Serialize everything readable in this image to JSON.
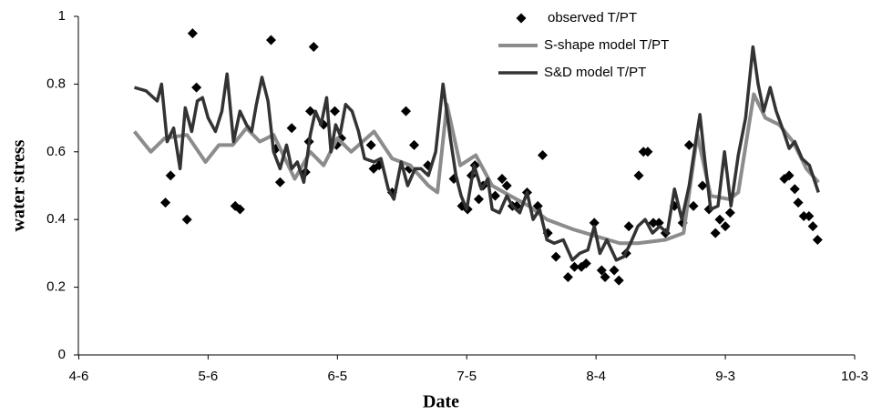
{
  "chart_data": {
    "type": "line",
    "x_label": "Date",
    "y_label": "water stress",
    "xlim": [
      -0.1,
      180
    ],
    "xticks": [
      {
        "value": 0,
        "label": "4-6"
      },
      {
        "value": 30,
        "label": "5-6"
      },
      {
        "value": 60,
        "label": "6-5"
      },
      {
        "value": 90,
        "label": "7-5"
      },
      {
        "value": 120,
        "label": "8-4"
      },
      {
        "value": 150,
        "label": "9-3"
      },
      {
        "value": 180,
        "label": "10-3"
      }
    ],
    "ylim": [
      0,
      1
    ],
    "yticks": [
      0,
      0.2,
      0.4,
      0.6,
      0.8,
      1
    ],
    "grid": false,
    "legend": "top-right",
    "series": [
      {
        "name": "observed T/PT",
        "color": "#000000",
        "marker": "diamond",
        "x": [
          26.4,
          27.3,
          20.1,
          21.3,
          25.1,
          36.3,
          37.4,
          44.6,
          54.5,
          45.8,
          46.7,
          49.4,
          52.6,
          53.4,
          53.7,
          56.8,
          59.4,
          59.8,
          60.9,
          67.8,
          68.4,
          69.7,
          72.7,
          75.9,
          76.7,
          77.8,
          81.0,
          87.0,
          88.9,
          90.2,
          91.1,
          91.9,
          92.8,
          93.8,
          96.6,
          98.2,
          99.3,
          100.6,
          101.6,
          104.0,
          106.5,
          107.6,
          108.8,
          110.7,
          113.5,
          115.0,
          116.6,
          117.7,
          119.6,
          121.3,
          122.1,
          124.2,
          125.3,
          127.0,
          127.6,
          129.9,
          131.0,
          132.0,
          133.3,
          134.6,
          136.1,
          138.2,
          140.1,
          141.6,
          142.6,
          144.7,
          146.2,
          147.7,
          148.7,
          150.0,
          151.1,
          163.7,
          164.8,
          166.1,
          166.9,
          168.2,
          169.4,
          170.3,
          171.4
        ],
        "values": [
          0.95,
          0.79,
          0.45,
          0.53,
          0.4,
          0.44,
          0.43,
          0.93,
          0.91,
          0.61,
          0.51,
          0.67,
          0.54,
          0.63,
          0.72,
          0.68,
          0.72,
          0.62,
          0.64,
          0.62,
          0.55,
          0.56,
          0.48,
          0.72,
          0.55,
          0.62,
          0.56,
          0.52,
          0.44,
          0.43,
          0.53,
          0.56,
          0.46,
          0.5,
          0.47,
          0.52,
          0.5,
          0.44,
          0.44,
          0.48,
          0.44,
          0.59,
          0.36,
          0.29,
          0.23,
          0.26,
          0.26,
          0.27,
          0.39,
          0.25,
          0.23,
          0.25,
          0.22,
          0.3,
          0.38,
          0.53,
          0.6,
          0.6,
          0.39,
          0.39,
          0.36,
          0.44,
          0.39,
          0.62,
          0.44,
          0.5,
          0.43,
          0.36,
          0.4,
          0.38,
          0.42,
          0.52,
          0.53,
          0.49,
          0.45,
          0.41,
          0.41,
          0.38,
          0.34
        ]
      },
      {
        "name": "S-shape model T/PT",
        "color": "#8c8c8c",
        "x": [
          12.9,
          16.7,
          19.9,
          25.1,
          29.4,
          32.5,
          35.7,
          38.9,
          42.0,
          45.2,
          50.1,
          53.7,
          56.8,
          60.0,
          63.2,
          68.5,
          72.7,
          76.9,
          81.1,
          83.2,
          85.4,
          88.5,
          92.1,
          95.9,
          100.1,
          104.4,
          108.6,
          114.9,
          120.2,
          125.5,
          129.7,
          136.1,
          140.3,
          143.5,
          146.6,
          150.9,
          153.0,
          156.6,
          159.3,
          162.5,
          165.7,
          168.8,
          171.6
        ],
        "values": [
          0.66,
          0.6,
          0.64,
          0.65,
          0.57,
          0.62,
          0.62,
          0.67,
          0.63,
          0.65,
          0.52,
          0.6,
          0.56,
          0.64,
          0.6,
          0.66,
          0.58,
          0.56,
          0.5,
          0.48,
          0.74,
          0.56,
          0.59,
          0.5,
          0.47,
          0.44,
          0.4,
          0.37,
          0.35,
          0.33,
          0.33,
          0.34,
          0.36,
          0.65,
          0.47,
          0.46,
          0.48,
          0.77,
          0.7,
          0.68,
          0.63,
          0.55,
          0.51
        ]
      },
      {
        "name": "S&D model T/PT",
        "color": "#333333",
        "x": [
          12.9,
          15.6,
          18.2,
          19.2,
          20.5,
          22.0,
          23.5,
          24.7,
          26.2,
          27.5,
          28.7,
          30.0,
          31.7,
          33.2,
          34.4,
          35.9,
          37.4,
          38.9,
          40.1,
          41.2,
          42.5,
          43.9,
          45.2,
          46.7,
          48.2,
          49.4,
          50.7,
          52.2,
          53.7,
          54.9,
          56.2,
          57.5,
          58.5,
          59.6,
          60.6,
          61.9,
          63.4,
          64.9,
          66.3,
          68.5,
          70.1,
          71.8,
          73.1,
          74.8,
          76.3,
          78.0,
          79.4,
          81.1,
          82.8,
          84.5,
          86.2,
          87.5,
          88.7,
          90.0,
          91.7,
          93.4,
          94.9,
          95.9,
          97.6,
          99.3,
          100.6,
          102.3,
          104.0,
          105.4,
          106.9,
          108.6,
          110.3,
          112.4,
          114.5,
          116.2,
          118.1,
          119.6,
          120.9,
          122.5,
          124.7,
          126.4,
          128.0,
          129.7,
          131.4,
          133.1,
          134.8,
          136.5,
          138.2,
          139.9,
          141.6,
          143.0,
          144.1,
          145.2,
          146.6,
          148.3,
          149.8,
          151.3,
          153.0,
          154.7,
          156.4,
          157.6,
          158.9,
          160.4,
          161.8,
          163.5,
          164.8,
          166.1,
          167.8,
          169.5,
          171.6
        ],
        "values": [
          0.79,
          0.78,
          0.75,
          0.8,
          0.63,
          0.67,
          0.55,
          0.73,
          0.66,
          0.75,
          0.76,
          0.7,
          0.66,
          0.72,
          0.83,
          0.63,
          0.72,
          0.68,
          0.66,
          0.74,
          0.82,
          0.75,
          0.6,
          0.55,
          0.62,
          0.55,
          0.57,
          0.51,
          0.65,
          0.72,
          0.68,
          0.76,
          0.6,
          0.68,
          0.65,
          0.74,
          0.72,
          0.66,
          0.58,
          0.57,
          0.58,
          0.49,
          0.46,
          0.57,
          0.5,
          0.55,
          0.55,
          0.53,
          0.6,
          0.8,
          0.64,
          0.53,
          0.47,
          0.43,
          0.56,
          0.49,
          0.52,
          0.43,
          0.42,
          0.47,
          0.44,
          0.42,
          0.48,
          0.4,
          0.43,
          0.34,
          0.33,
          0.34,
          0.28,
          0.3,
          0.31,
          0.38,
          0.3,
          0.34,
          0.28,
          0.29,
          0.33,
          0.38,
          0.4,
          0.36,
          0.38,
          0.36,
          0.49,
          0.4,
          0.5,
          0.62,
          0.71,
          0.58,
          0.43,
          0.44,
          0.6,
          0.44,
          0.59,
          0.7,
          0.91,
          0.8,
          0.72,
          0.79,
          0.72,
          0.66,
          0.61,
          0.63,
          0.58,
          0.56,
          0.48
        ]
      }
    ]
  }
}
